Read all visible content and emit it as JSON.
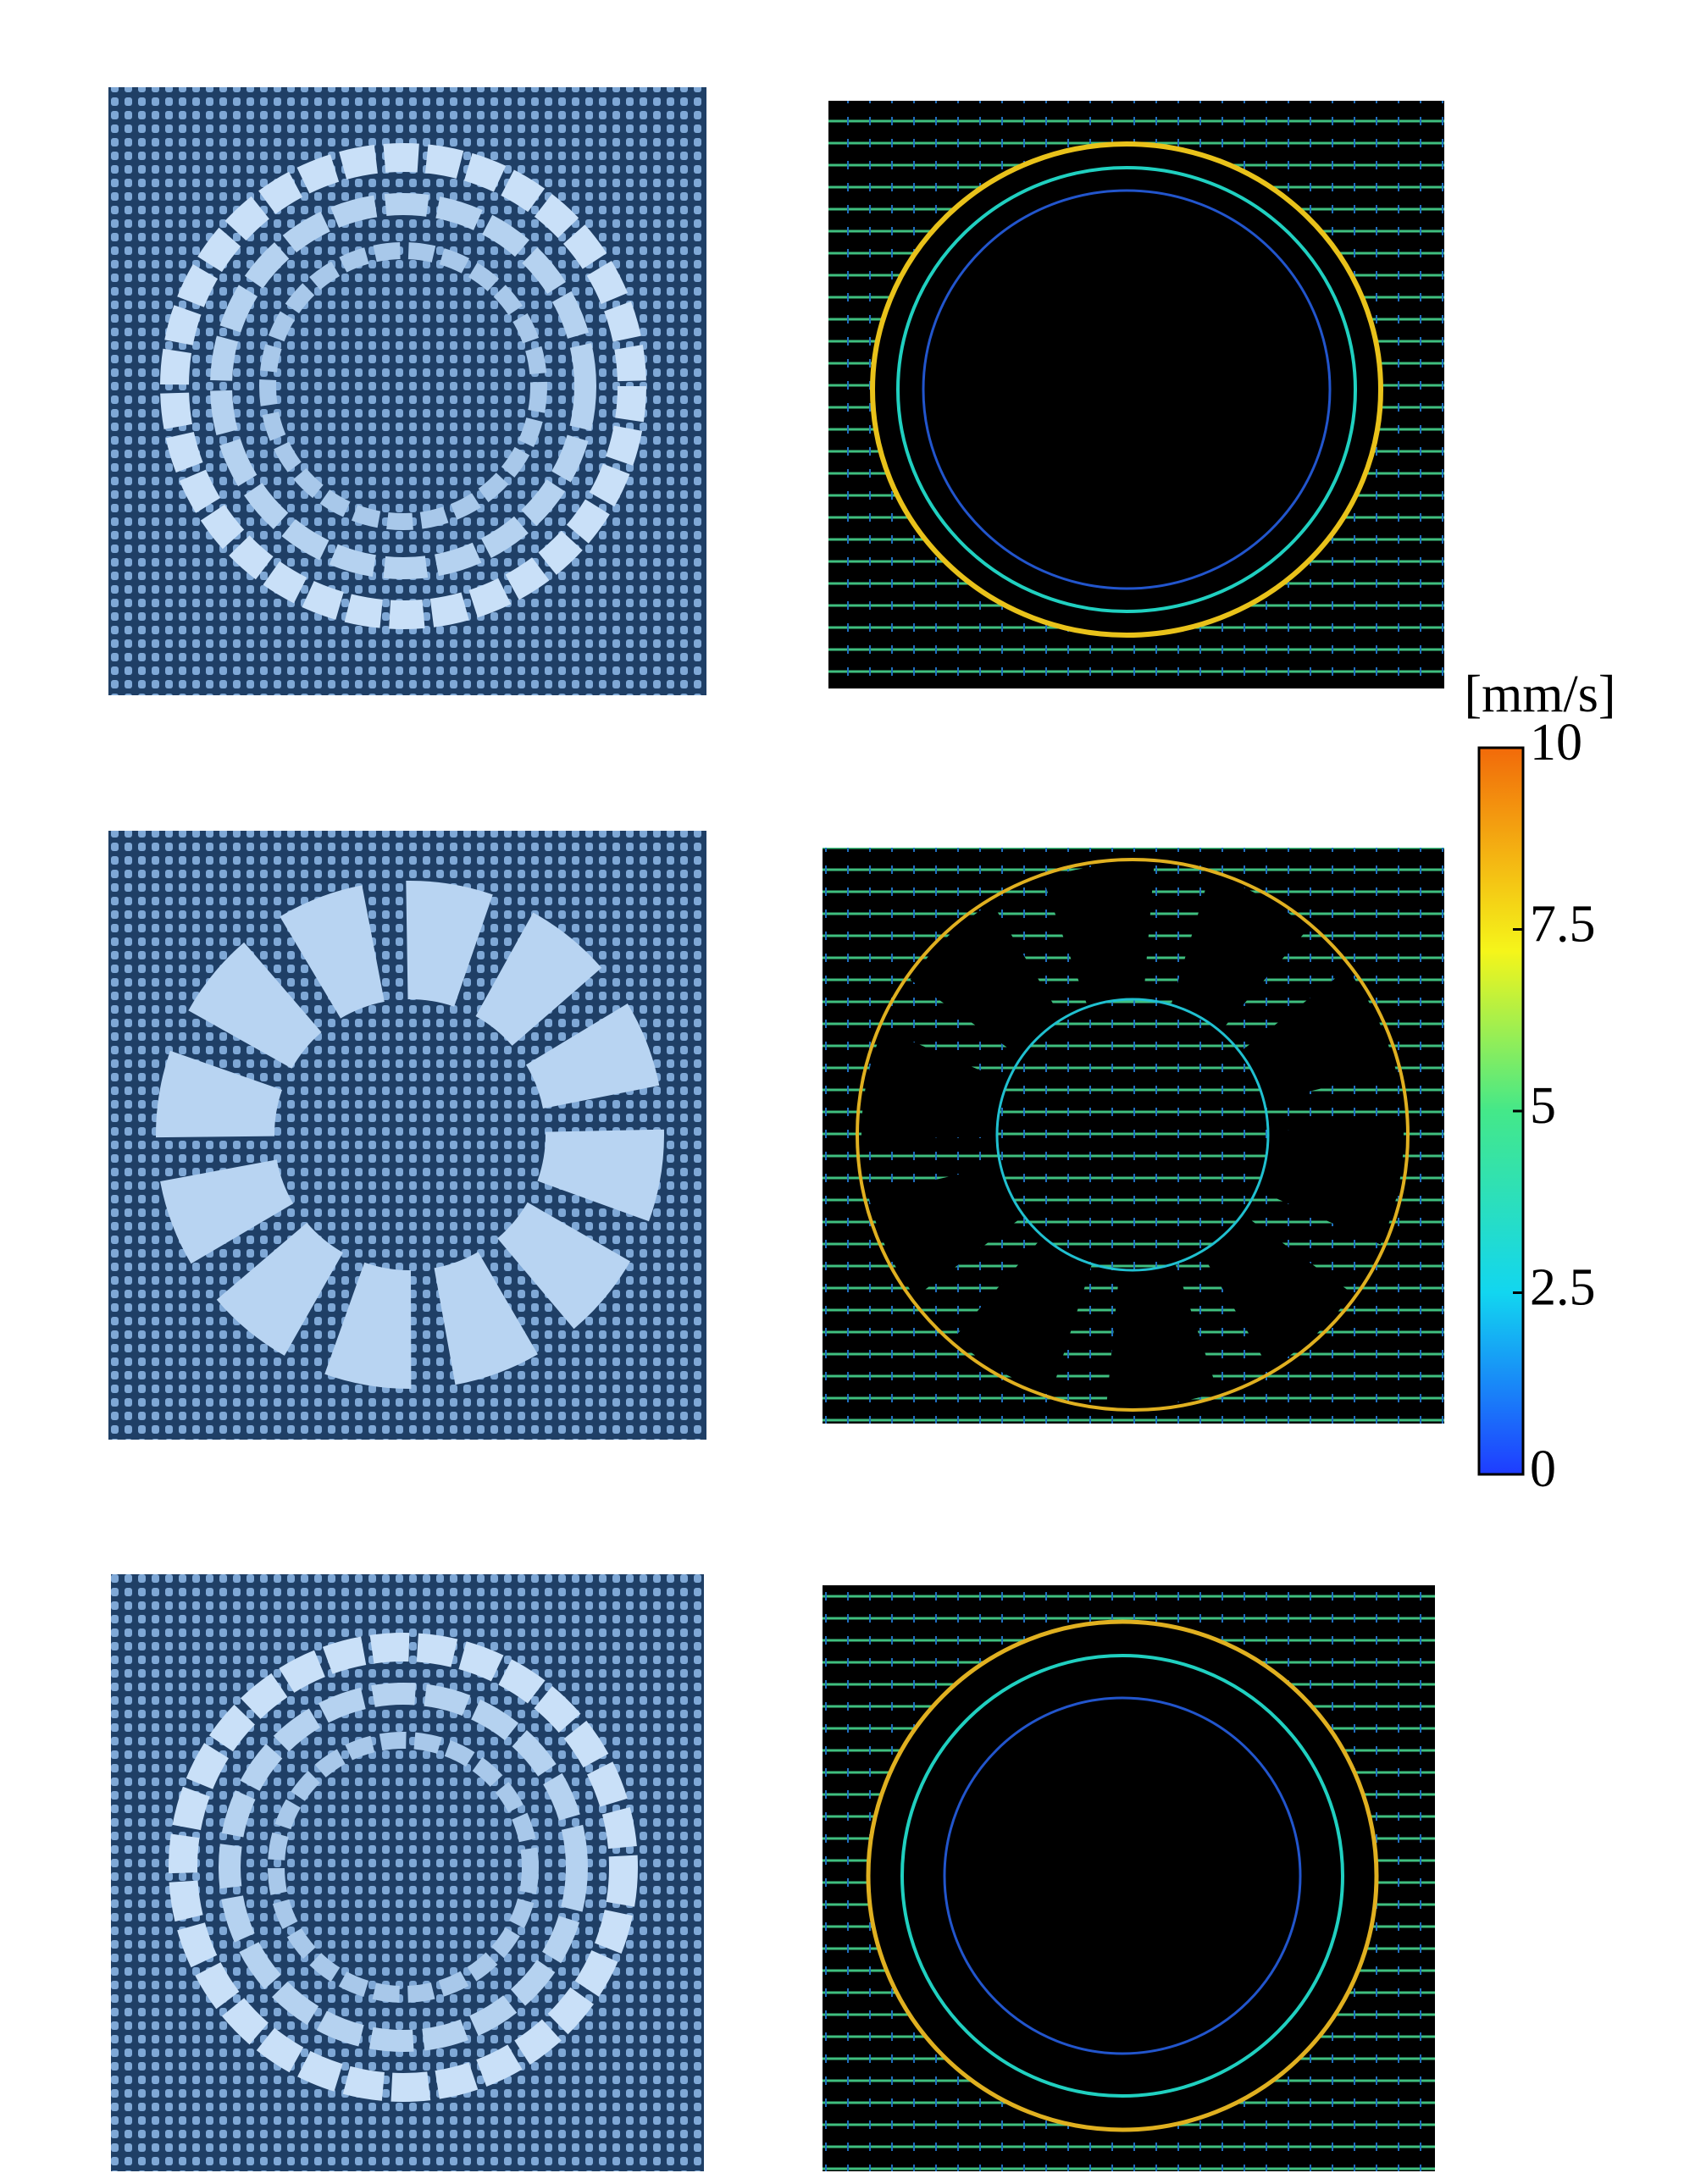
{
  "colorbar": {
    "label": "[mm/s]",
    "lim": [
      0,
      10
    ],
    "ticks": [
      0,
      2.5,
      5,
      7.5,
      10
    ]
  }
}
